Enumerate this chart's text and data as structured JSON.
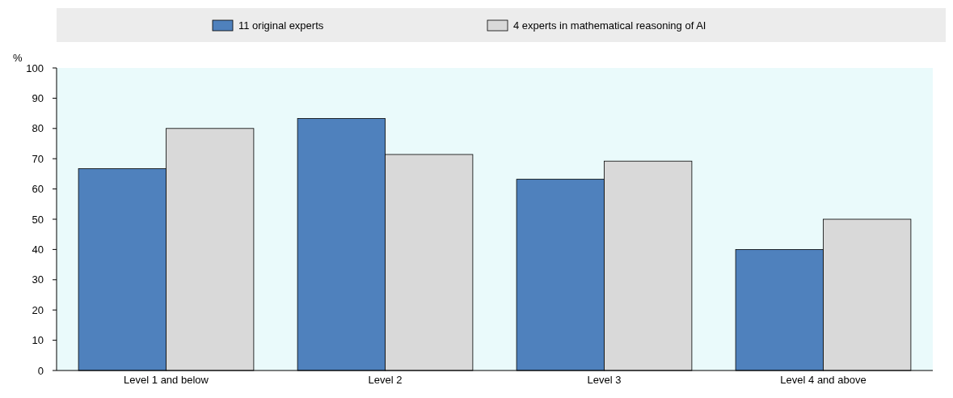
{
  "chart_data": {
    "type": "bar",
    "ylabel": "%",
    "categories": [
      "Level 1 and below",
      "Level 2",
      "Level 3",
      "Level 4 and above"
    ],
    "series": [
      {
        "name": "11 original experts",
        "color": "#4f81bd",
        "values": [
          66.7,
          83.3,
          63.2,
          40
        ]
      },
      {
        "name": "4 experts in mathematical reasoning of AI",
        "color": "#d9d9d9",
        "values": [
          80,
          71.4,
          69.2,
          50
        ]
      }
    ],
    "ylim": [
      0,
      100
    ],
    "yticks": [
      0,
      10,
      20,
      30,
      40,
      50,
      60,
      70,
      80,
      90,
      100
    ],
    "legend": "top"
  }
}
